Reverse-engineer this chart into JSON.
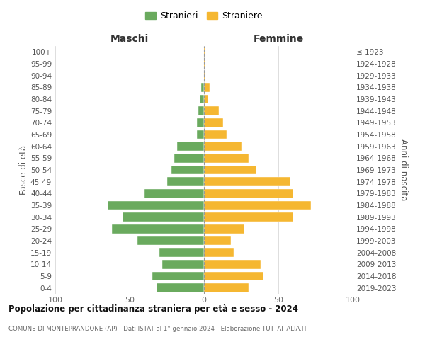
{
  "age_groups": [
    "0-4",
    "5-9",
    "10-14",
    "15-19",
    "20-24",
    "25-29",
    "30-34",
    "35-39",
    "40-44",
    "45-49",
    "50-54",
    "55-59",
    "60-64",
    "65-69",
    "70-74",
    "75-79",
    "80-84",
    "85-89",
    "90-94",
    "95-99",
    "100+"
  ],
  "birth_years": [
    "2019-2023",
    "2014-2018",
    "2009-2013",
    "2004-2008",
    "1999-2003",
    "1994-1998",
    "1989-1993",
    "1984-1988",
    "1979-1983",
    "1974-1978",
    "1969-1973",
    "1964-1968",
    "1959-1963",
    "1954-1958",
    "1949-1953",
    "1944-1948",
    "1939-1943",
    "1934-1938",
    "1929-1933",
    "1924-1928",
    "≤ 1923"
  ],
  "maschi": [
    32,
    35,
    28,
    30,
    45,
    62,
    55,
    65,
    40,
    25,
    22,
    20,
    18,
    5,
    5,
    4,
    3,
    2,
    0,
    0,
    0
  ],
  "femmine": [
    30,
    40,
    38,
    20,
    18,
    27,
    60,
    72,
    60,
    58,
    35,
    30,
    25,
    15,
    13,
    10,
    3,
    4,
    1,
    1,
    1
  ],
  "maschi_color": "#6aaa5e",
  "femmine_color": "#f5b731",
  "title": "Popolazione per cittadinanza straniera per età e sesso - 2024",
  "subtitle": "COMUNE DI MONTEPRANDONE (AP) - Dati ISTAT al 1° gennaio 2024 - Elaborazione TUTTAITALIA.IT",
  "col_header_left": "Maschi",
  "col_header_right": "Femmine",
  "ylabel_left": "Fasce di età",
  "ylabel_right": "Anni di nascita",
  "legend_maschi": "Stranieri",
  "legend_femmine": "Straniere",
  "xlim": 100,
  "background_color": "#ffffff",
  "grid_color": "#d0d0d0"
}
